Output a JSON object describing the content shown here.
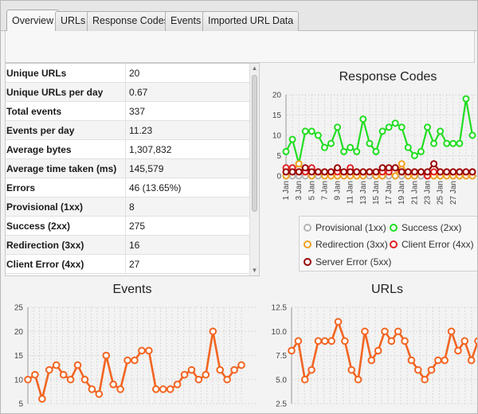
{
  "tabs": [
    {
      "label": "Overview",
      "active": true
    },
    {
      "label": "URLs",
      "active": false
    },
    {
      "label": "Response Codes",
      "active": false
    },
    {
      "label": "Events",
      "active": false
    },
    {
      "label": "Imported URL Data",
      "active": false
    }
  ],
  "stats": [
    {
      "key": "Unique URLs",
      "value": "20"
    },
    {
      "key": "Unique URLs per day",
      "value": "0.67"
    },
    {
      "key": "Total events",
      "value": "337"
    },
    {
      "key": "Events per day",
      "value": "11.23"
    },
    {
      "key": "Average bytes",
      "value": "1,307,832"
    },
    {
      "key": "Average time taken (ms)",
      "value": "145,579"
    },
    {
      "key": "Errors",
      "value": "46 (13.65%)"
    },
    {
      "key": "Provisional (1xx)",
      "value": "8"
    },
    {
      "key": "Success (2xx)",
      "value": "275"
    },
    {
      "key": "Redirection (3xx)",
      "value": "16"
    },
    {
      "key": "Client Error (4xx)",
      "value": "27"
    }
  ],
  "chart_data": [
    {
      "type": "line",
      "title": "Response Codes",
      "ylim": [
        0,
        20
      ],
      "yticks": [
        0,
        5,
        10,
        15,
        20
      ],
      "xticks": [
        "1 Jan",
        "3 Jan",
        "5 Jan",
        "7 Jan",
        "9 Jan",
        "11 Jan",
        "13 Jan",
        "15 Jan",
        "17 Jan",
        "19 Jan",
        "21 Jan",
        "23 Jan",
        "25 Jan",
        "27 Jan"
      ],
      "legend": "bottom",
      "series": [
        {
          "name": "Provisional (1xx)",
          "color": "#b3b3b3",
          "values": [
            0,
            0,
            0,
            0,
            0,
            0,
            0,
            0,
            0,
            0,
            1,
            0,
            0,
            0,
            0,
            0,
            0,
            0,
            0,
            0,
            0,
            0,
            0,
            0,
            0,
            0,
            0,
            0,
            0,
            0
          ]
        },
        {
          "name": "Success (2xx)",
          "color": "#22dd22",
          "values": [
            6,
            9,
            3,
            11,
            11,
            10,
            7,
            8,
            12,
            6,
            7,
            6,
            14,
            8,
            6,
            11,
            12,
            13,
            12,
            7,
            5,
            6,
            12,
            8,
            11,
            8,
            8,
            8,
            19,
            10
          ]
        },
        {
          "name": "Redirection (3xx)",
          "color": "#f0a020",
          "values": [
            0,
            1,
            3,
            1,
            0,
            1,
            0,
            0,
            0,
            0,
            0,
            0,
            0,
            1,
            0,
            0,
            1,
            0,
            3,
            0,
            0,
            1,
            0,
            0,
            0,
            0,
            0,
            0,
            0,
            0
          ]
        },
        {
          "name": "Client Error (4xx)",
          "color": "#e02020",
          "values": [
            2,
            2,
            1,
            1,
            2,
            1,
            1,
            1,
            1,
            1,
            2,
            1,
            1,
            1,
            1,
            1,
            1,
            2,
            1,
            1,
            1,
            1,
            0,
            1,
            1,
            1,
            1,
            1,
            1,
            1
          ]
        },
        {
          "name": "Server Error (5xx)",
          "color": "#990000",
          "values": [
            1,
            1,
            1,
            2,
            1,
            1,
            1,
            1,
            2,
            1,
            1,
            1,
            1,
            1,
            1,
            2,
            2,
            2,
            1,
            1,
            1,
            1,
            1,
            3,
            1,
            1,
            1,
            1,
            1,
            1
          ]
        }
      ]
    },
    {
      "type": "line",
      "title": "Events",
      "ylim": [
        5,
        25
      ],
      "yticks": [
        5,
        10,
        15,
        20,
        25
      ],
      "series": [
        {
          "name": "",
          "color": "#f26522",
          "values": [
            10,
            11,
            6,
            12,
            13,
            11,
            10,
            13,
            10,
            8,
            7,
            15,
            9,
            8,
            14,
            14,
            16,
            16,
            8,
            8,
            8,
            9,
            11,
            12,
            10,
            11,
            20,
            12,
            10,
            12,
            13
          ]
        }
      ]
    },
    {
      "type": "line",
      "title": "URLs",
      "ylim": [
        2.5,
        12.5
      ],
      "yticks": [
        2.5,
        5.0,
        7.5,
        10.0,
        12.5
      ],
      "series": [
        {
          "name": "",
          "color": "#f26522",
          "values": [
            8,
            9,
            5,
            6,
            9,
            9,
            9,
            11,
            9,
            6,
            5,
            10,
            7,
            8,
            10,
            9,
            10,
            9,
            7,
            6,
            5,
            6,
            7,
            7,
            10,
            8,
            9,
            7,
            9
          ]
        }
      ]
    }
  ]
}
